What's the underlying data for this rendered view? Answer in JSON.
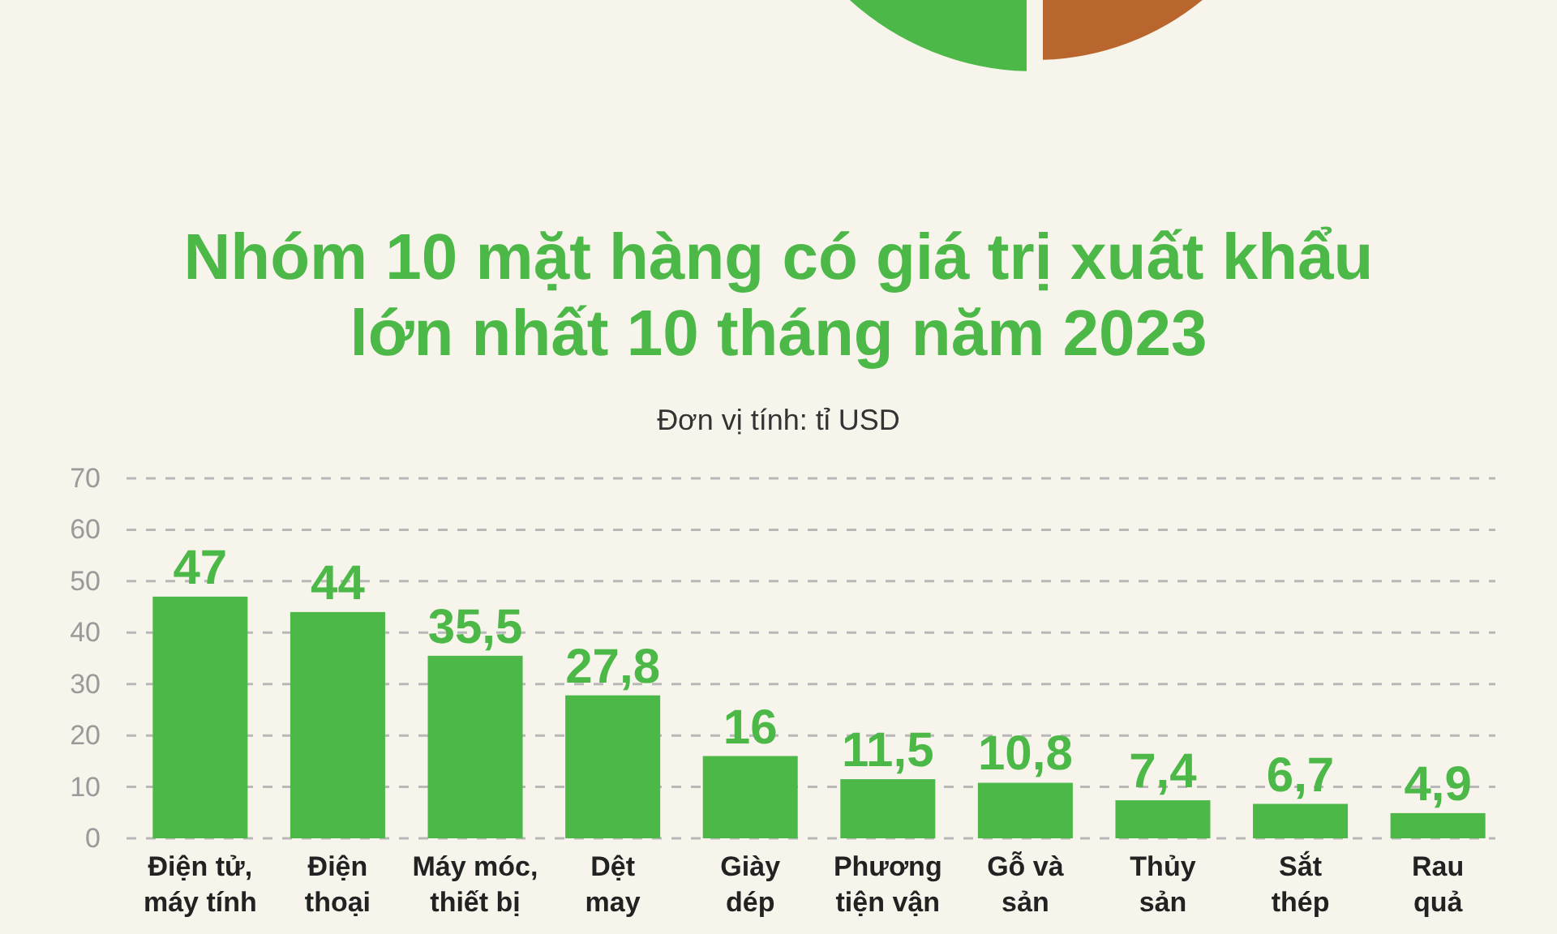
{
  "chart_data": {
    "type": "bar",
    "title": "Nhóm 10 mặt hàng có giá trị xuất khẩu lớn nhất 10 tháng năm 2023",
    "subtitle": "Đơn vị tính: tỉ USD",
    "categories": [
      "Điện tử, máy tính",
      "Điện thoại",
      "Máy móc, thiết bị",
      "Dệt may",
      "Giày dép",
      "Phương tiện vận",
      "Gỗ và sản",
      "Thủy sản",
      "Sắt thép",
      "Rau quả"
    ],
    "values": [
      47,
      44,
      35.5,
      27.8,
      16,
      11.5,
      10.8,
      7.4,
      6.7,
      4.9
    ],
    "value_labels": [
      "47",
      "44",
      "35,5",
      "27,8",
      "16",
      "11,5",
      "10,8",
      "7,4",
      "6,7",
      "4,9"
    ],
    "color": "#4cb848",
    "ylim": [
      0,
      70
    ],
    "yticks": [
      0,
      10,
      20,
      30,
      40,
      50,
      60,
      70
    ],
    "grid": "y"
  }
}
